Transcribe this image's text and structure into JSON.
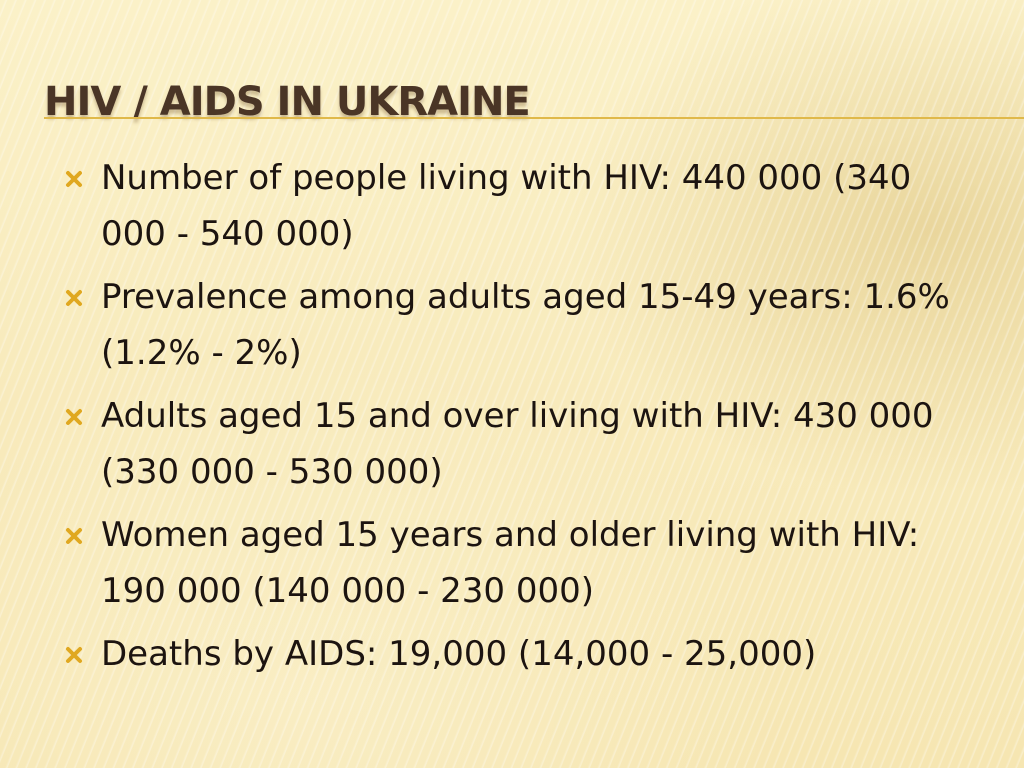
{
  "slide": {
    "title": "HIV / AIDS IN UKRAINE",
    "bullet_icon": "x-mark-icon",
    "accent_color": "#e0b94a",
    "title_color": "#4a3526",
    "bullets": [
      "Number of people living with HIV: 440 000 (340 000 - 540 000)",
      "Prevalence among adults aged 15-49 years: 1.6% (1.2% - 2%)",
      "Adults aged 15 and over living with HIV: 430 000 (330 000 - 530 000)",
      "Women aged 15 years and older living with HIV: 190 000 (140 000 - 230 000)",
      "Deaths by AIDS: 19,000 (14,000 - 25,000)"
    ]
  }
}
